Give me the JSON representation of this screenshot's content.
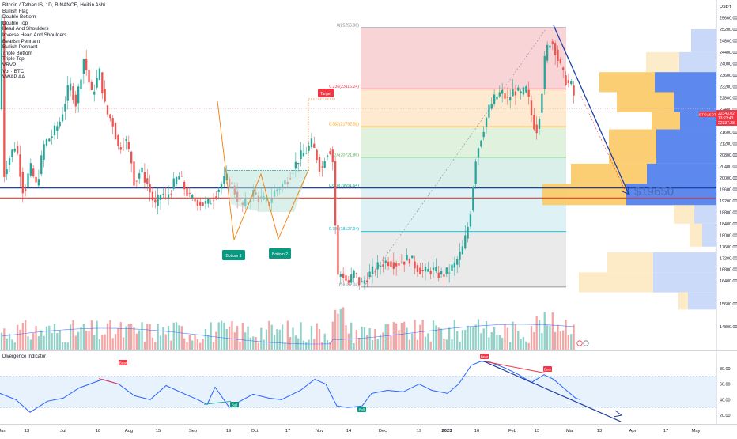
{
  "chart_data": {
    "type": "candlestick",
    "title": "Bitcoin / TetherUS, 1D, BINANCE, Heikin Ashi",
    "symbol_tag": "BTCUSDT",
    "currency_label": "USDT",
    "price_axis": {
      "ylim": [
        14000,
        26000
      ],
      "ticks": [
        14800,
        15600,
        16400,
        16800,
        17200,
        17600,
        18000,
        18400,
        18800,
        19200,
        19600,
        20000,
        20400,
        20800,
        21200,
        21600,
        22000,
        22400,
        22800,
        23200,
        23600,
        24000,
        24400,
        24800,
        25200,
        25600
      ]
    },
    "time_axis": [
      "Jun",
      "13",
      "Jul",
      "18",
      "Aug",
      "15",
      "Sep",
      "19",
      "Oct",
      "17",
      "Nov",
      "14",
      "Dec",
      "19",
      "2023",
      "16",
      "Feb",
      "13",
      "Mar",
      "13",
      "Apr",
      "17",
      "May"
    ],
    "price_labels": [
      "22343.02",
      "13:23:43",
      "22337.28"
    ],
    "indicators_list": [
      "Bullish Flag",
      "Double Bottom",
      "Double Top",
      "Head And Shoulders",
      "Inverse Head And Shoulders",
      "Bearish Pennant",
      "Bullish Pennant",
      "Triple Bottom",
      "Triple Top",
      "VRVP",
      "Vol · BTC",
      "VWAP AA"
    ],
    "fibonacci": [
      {
        "label": "0(25256.98)",
        "price": 25256.98,
        "color": "#787b86"
      },
      {
        "label": "0.236(23116.24)",
        "price": 23116.24,
        "color": "#f23645"
      },
      {
        "label": "0.382(21792.08)",
        "price": 21792.08,
        "color": "#ff9800"
      },
      {
        "label": "0.5(20721.86)",
        "price": 20721.86,
        "color": "#4caf50"
      },
      {
        "label": "0.618(19651.64)",
        "price": 19651.64,
        "color": "#089981"
      },
      {
        "label": "0.786(18127.94)",
        "price": 18127.94,
        "color": "#00bcd4"
      },
      {
        "label": "1(16187.04)",
        "price": 16187.04,
        "color": "#787b86"
      }
    ],
    "horizontal_levels": [
      {
        "price": 19651.64,
        "color": "#1d3fa6"
      },
      {
        "price": 19300,
        "color": "#e53935"
      }
    ],
    "annotations": {
      "target": "Target",
      "bottom1": "Bottom 1",
      "bottom2": "Bottom 2",
      "projection": "$19650"
    },
    "divergence": {
      "title": "Divergence Indicator",
      "ylim": [
        10,
        100
      ],
      "ticks": [
        20.0,
        40.0,
        60.0,
        80.0
      ],
      "band": [
        30,
        70
      ],
      "bear_label": "Bear",
      "bull_label": "Bull"
    }
  }
}
